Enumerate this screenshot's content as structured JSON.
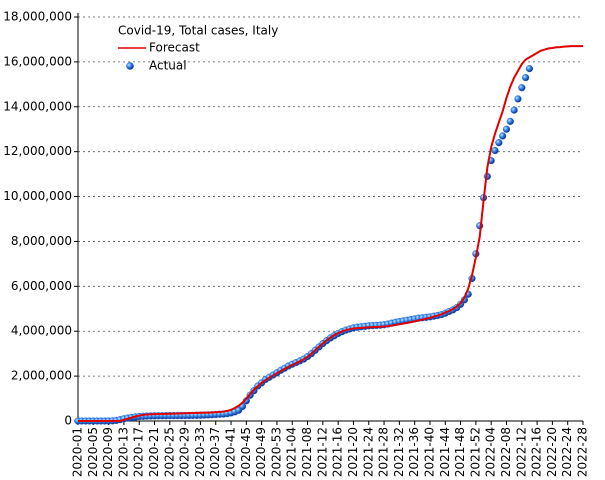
{
  "chart_data": {
    "type": "line",
    "title": "Covid-19, Total cases, Italy",
    "categories": [
      "2020-01",
      null,
      null,
      null,
      "2020-05",
      null,
      null,
      null,
      "2020-09",
      null,
      null,
      null,
      "2020-13",
      null,
      null,
      null,
      "2020-17",
      null,
      null,
      null,
      "2020-21",
      null,
      null,
      null,
      "2020-25",
      null,
      null,
      null,
      "2020-29",
      null,
      null,
      null,
      "2020-33",
      null,
      null,
      null,
      "2020-37",
      null,
      null,
      null,
      "2020-41",
      null,
      null,
      null,
      "2020-45",
      null,
      null,
      null,
      "2020-49",
      null,
      null,
      null,
      "2020-53",
      null,
      null,
      null,
      "2021-04",
      null,
      null,
      null,
      "2021-08",
      null,
      null,
      null,
      "2021-12",
      null,
      null,
      null,
      "2021-16",
      null,
      null,
      null,
      "2021-20",
      null,
      null,
      null,
      "2021-24",
      null,
      null,
      null,
      "2021-28",
      null,
      null,
      null,
      "2021-32",
      null,
      null,
      null,
      "2021-36",
      null,
      null,
      null,
      "2021-40",
      null,
      null,
      null,
      "2021-44",
      null,
      null,
      null,
      "2021-48",
      null,
      null,
      null,
      "2021-52",
      null,
      null,
      null,
      "2022-04",
      null,
      null,
      null,
      "2022-08",
      null,
      null,
      null,
      "2022-12",
      null,
      null,
      null,
      "2022-16",
      null,
      null,
      null,
      "2022-20",
      null,
      null,
      null,
      "2022-24",
      null,
      null,
      null,
      "2022-28"
    ],
    "series": [
      {
        "name": "Forecast",
        "type": "line",
        "color": "#e00000",
        "values": [
          0,
          0,
          0,
          0,
          0,
          0,
          0,
          0,
          0,
          0,
          0,
          0,
          50000,
          100000,
          150000,
          200000,
          240000,
          270000,
          290000,
          300000,
          305000,
          310000,
          315000,
          320000,
          325000,
          330000,
          335000,
          340000,
          345000,
          350000,
          355000,
          360000,
          365000,
          370000,
          375000,
          380000,
          390000,
          400000,
          420000,
          450000,
          500000,
          580000,
          680000,
          820000,
          1000000,
          1200000,
          1400000,
          1550000,
          1700000,
          1820000,
          1930000,
          2030000,
          2130000,
          2230000,
          2320000,
          2410000,
          2500000,
          2580000,
          2660000,
          2750000,
          2860000,
          3000000,
          3150000,
          3310000,
          3460000,
          3600000,
          3720000,
          3830000,
          3920000,
          3990000,
          4050000,
          4090000,
          4120000,
          4140000,
          4150000,
          4160000,
          4170000,
          4180000,
          4190000,
          4200000,
          4210000,
          4230000,
          4250000,
          4280000,
          4310000,
          4340000,
          4370000,
          4400000,
          4440000,
          4480000,
          4520000,
          4560000,
          4600000,
          4650000,
          4700000,
          4760000,
          4830000,
          4900000,
          4990000,
          5100000,
          5250000,
          5500000,
          5900000,
          6500000,
          7300000,
          8200000,
          9800000,
          11300000,
          12200000,
          12800000,
          13300000,
          13800000,
          14400000,
          14900000,
          15300000,
          15600000,
          15900000,
          16100000,
          16200000,
          16300000,
          16400000,
          16500000,
          16550000,
          16600000,
          16620000,
          16650000,
          16660000,
          16680000,
          16690000,
          16700000,
          16700000,
          16700000,
          16700000
        ]
      },
      {
        "name": "Actual",
        "type": "scatter",
        "color": "#1f63d6",
        "values": [
          0,
          0,
          0,
          0,
          0,
          0,
          0,
          0,
          1000,
          6000,
          25000,
          60000,
          100000,
          130000,
          160000,
          180000,
          200000,
          210000,
          220000,
          226000,
          230000,
          233000,
          235000,
          237000,
          239000,
          240000,
          241000,
          243000,
          245000,
          247000,
          250000,
          253000,
          258000,
          265000,
          272000,
          280000,
          290000,
          300000,
          310000,
          330000,
          360000,
          410000,
          480000,
          650000,
          900000,
          1150000,
          1350000,
          1560000,
          1700000,
          1850000,
          1950000,
          2050000,
          2150000,
          2260000,
          2350000,
          2450000,
          2530000,
          2600000,
          2680000,
          2760000,
          2870000,
          3000000,
          3150000,
          3300000,
          3450000,
          3580000,
          3700000,
          3800000,
          3900000,
          3980000,
          4050000,
          4100000,
          4150000,
          4180000,
          4200000,
          4220000,
          4240000,
          4250000,
          4260000,
          4270000,
          4290000,
          4320000,
          4360000,
          4400000,
          4430000,
          4460000,
          4490000,
          4520000,
          4550000,
          4580000,
          4600000,
          4620000,
          4640000,
          4670000,
          4700000,
          4740000,
          4800000,
          4880000,
          4950000,
          5050000,
          5200000,
          5400000,
          5650000,
          6350000,
          7450000,
          8700000,
          9950000,
          10900000,
          11600000,
          12050000,
          12400000,
          12700000,
          13000000,
          13350000,
          13850000,
          14350000,
          14850000,
          15300000,
          15700000,
          null,
          null,
          null,
          null,
          null,
          null,
          null,
          null,
          null,
          null,
          null,
          null,
          null,
          null
        ]
      }
    ],
    "ylim": [
      0,
      18000000
    ],
    "yticks": [
      0,
      {
        "value": 2000000,
        "label": "2,000,000"
      },
      {
        "value": 4000000,
        "label": "4,000,000"
      },
      {
        "value": 6000000,
        "label": "6,000,000"
      },
      {
        "value": 8000000,
        "label": "8,000,000"
      },
      {
        "value": 10000000,
        "label": "10,000,000"
      },
      {
        "value": 12000000,
        "label": "12,000,000"
      },
      {
        "value": 14000000,
        "label": "14,000,000"
      },
      {
        "value": 16000000,
        "label": "16,000,000"
      },
      {
        "value": 18000000,
        "label": "18,000,000"
      }
    ],
    "grid": true
  }
}
